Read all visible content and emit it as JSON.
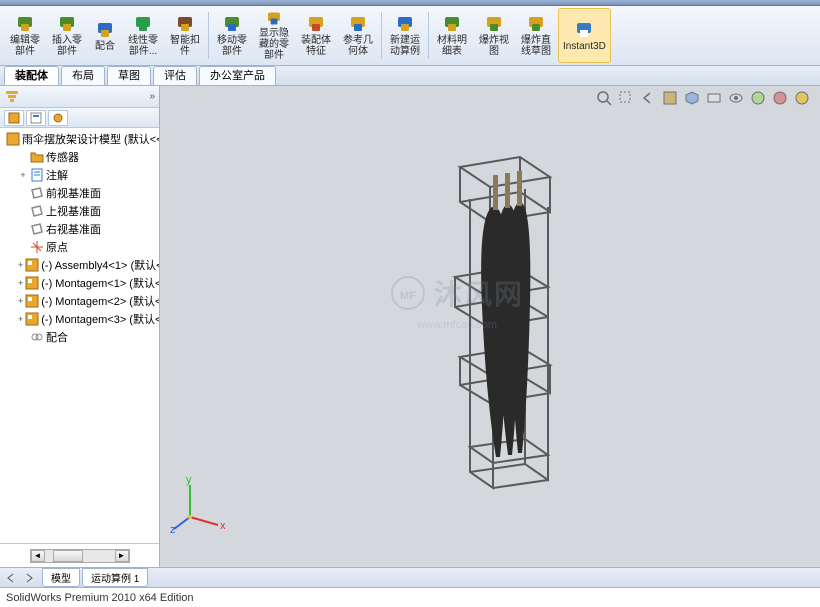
{
  "ribbon": {
    "buttons": [
      {
        "label": "编辑零\n部件",
        "icon": "#4a8c2a",
        "icon2": "#d4a020"
      },
      {
        "label": "插入零\n部件",
        "icon": "#4a8c2a",
        "icon2": "#d4a020"
      },
      {
        "label": "配合",
        "icon": "#2a6cc4",
        "icon2": "#d4a020"
      },
      {
        "label": "线性零\n部件...",
        "icon": "#2a9c4a",
        "icon2": "#2a9c4a"
      },
      {
        "label": "智能扣\n件",
        "icon": "#7a4c2a",
        "icon2": "#d4a020"
      },
      {
        "label": "移动零\n部件",
        "icon": "#4a8c2a",
        "icon2": "#2a6cc4"
      },
      {
        "label": "显示隐\n藏的零\n部件",
        "icon": "#d4a020",
        "icon2": "#2a6cc4"
      },
      {
        "label": "装配体\n特征",
        "icon": "#d4a020",
        "icon2": "#c44a2a"
      },
      {
        "label": "参考几\n何体",
        "icon": "#d4a020",
        "icon2": "#2a6cc4"
      },
      {
        "label": "新建运\n动算例",
        "icon": "#2a6cc4",
        "icon2": "#d4a020"
      },
      {
        "label": "材料明\n细表",
        "icon": "#4a8c2a",
        "icon2": "#d4a020"
      },
      {
        "label": "爆炸视\n图",
        "icon": "#d4a020",
        "icon2": "#4a8c2a"
      },
      {
        "label": "爆炸直\n线草图",
        "icon": "#d4a020",
        "icon2": "#4a8c2a"
      },
      {
        "label": "Instant3D",
        "icon": "#3a7cc4",
        "icon2": "#fff",
        "active": true
      }
    ]
  },
  "cmdtabs": {
    "items": [
      "装配体",
      "布局",
      "草图",
      "评估",
      "办公室产品"
    ],
    "active": 0
  },
  "sidebar": {
    "root": "雨伞摆放架设计模型 (默认<<",
    "nodes": [
      {
        "icon": "folder",
        "label": "传感器",
        "color": "#e8a830"
      },
      {
        "icon": "note",
        "label": "注解",
        "color": "#3a7cc4",
        "exp": "+"
      },
      {
        "icon": "plane",
        "label": "前视基准面",
        "color": "#888"
      },
      {
        "icon": "plane",
        "label": "上视基准面",
        "color": "#888"
      },
      {
        "icon": "plane",
        "label": "右视基准面",
        "color": "#888"
      },
      {
        "icon": "origin",
        "label": "原点",
        "color": "#c44a2a"
      },
      {
        "icon": "asm",
        "label": "(-) Assembly4<1> (默认<",
        "color": "#e8a830",
        "exp": "+"
      },
      {
        "icon": "asm",
        "label": "(-) Montagem<1> (默认<",
        "color": "#e8a830",
        "exp": "+"
      },
      {
        "icon": "asm",
        "label": "(-) Montagem<2> (默认<",
        "color": "#e8a830",
        "exp": "+"
      },
      {
        "icon": "asm",
        "label": "(-) Montagem<3> (默认<",
        "color": "#e8a830",
        "exp": "+"
      },
      {
        "icon": "mate",
        "label": "配合",
        "color": "#888"
      }
    ]
  },
  "watermark": {
    "text": "沐风网",
    "sub": "www.mfcad.com"
  },
  "bottomtabs": {
    "items": [
      "模型",
      "运动算例 1"
    ]
  },
  "statusbar": {
    "text": "SolidWorks Premium 2010 x64 Edition"
  },
  "triad": {
    "x": "x",
    "y": "y",
    "z": "z",
    "xcolor": "#e03030",
    "ycolor": "#30c030",
    "zcolor": "#3060e0"
  },
  "model": {
    "frame_color": "#5a5a5a",
    "umbrella_color": "#2a2a2a",
    "handle_color": "#8a7a5a"
  }
}
